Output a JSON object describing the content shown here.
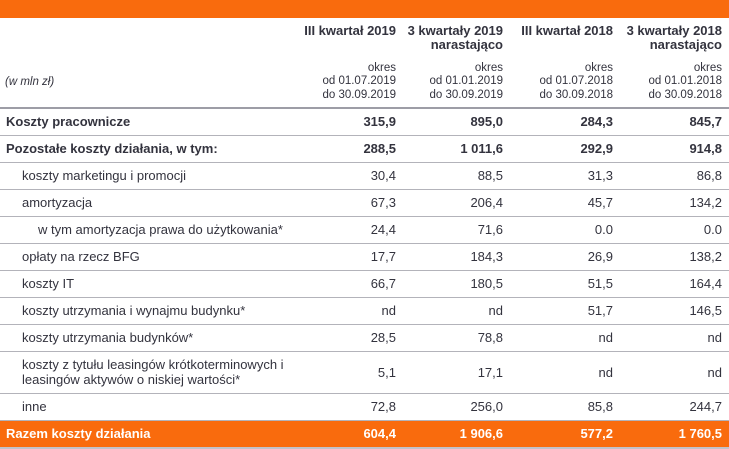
{
  "unit_label": "(w mln zł)",
  "colors": {
    "accent_orange": "#f96b0d",
    "text": "#33333e",
    "grid_line": "#b3b3ba",
    "footer_text": "#ffffff"
  },
  "table": {
    "columns": [
      {
        "title": "III kwartał 2019",
        "subtitle": "",
        "period_label": "okres",
        "from": "od 01.07.2019",
        "to": "do 30.09.2019"
      },
      {
        "title": "3 kwartały 2019",
        "subtitle": "narastająco",
        "period_label": "okres",
        "from": "od 01.01.2019",
        "to": "do 30.09.2019"
      },
      {
        "title": "III kwartał 2018",
        "subtitle": "",
        "period_label": "okres",
        "from": "od 01.07.2018",
        "to": "do 30.09.2018"
      },
      {
        "title": "3 kwartały 2018",
        "subtitle": "narastająco",
        "period_label": "okres",
        "from": "od 01.01.2018",
        "to": "do 30.09.2018"
      }
    ],
    "rows": [
      {
        "label": "Koszty pracownicze",
        "v1": "315,9",
        "v2": "895,0",
        "v3": "284,3",
        "v4": "845,7"
      },
      {
        "label": "Pozostałe koszty działania, w tym:",
        "v1": "288,5",
        "v2": "1 011,6",
        "v3": "292,9",
        "v4": "914,8"
      },
      {
        "label": "koszty marketingu i promocji",
        "v1": "30,4",
        "v2": "88,5",
        "v3": "31,3",
        "v4": "86,8"
      },
      {
        "label": "amortyzacja",
        "v1": "67,3",
        "v2": "206,4",
        "v3": "45,7",
        "v4": "134,2"
      },
      {
        "label": "w tym amortyzacja prawa do użytkowania*",
        "v1": "24,4",
        "v2": "71,6",
        "v3": "0.0",
        "v4": "0.0"
      },
      {
        "label": "opłaty na rzecz BFG",
        "v1": "17,7",
        "v2": "184,3",
        "v3": "26,9",
        "v4": "138,2"
      },
      {
        "label": "koszty IT",
        "v1": "66,7",
        "v2": "180,5",
        "v3": "51,5",
        "v4": "164,4"
      },
      {
        "label": "koszty utrzymania i wynajmu budynku*",
        "v1": "nd",
        "v2": "nd",
        "v3": "51,7",
        "v4": "146,5"
      },
      {
        "label": "koszty utrzymania budynków*",
        "v1": "28,5",
        "v2": "78,8",
        "v3": "nd",
        "v4": "nd"
      },
      {
        "label": "koszty z tytułu leasingów krótkoterminowych i leasingów  aktywów o niskiej wartości*",
        "v1": "5,1",
        "v2": "17,1",
        "v3": "nd",
        "v4": "nd"
      },
      {
        "label": "inne",
        "v1": "72,8",
        "v2": "256,0",
        "v3": "85,8",
        "v4": "244,7"
      }
    ],
    "footer": {
      "label": "Razem koszty działania",
      "v1": "604,4",
      "v2": "1 906,6",
      "v3": "577,2",
      "v4": "1 760,5"
    }
  }
}
